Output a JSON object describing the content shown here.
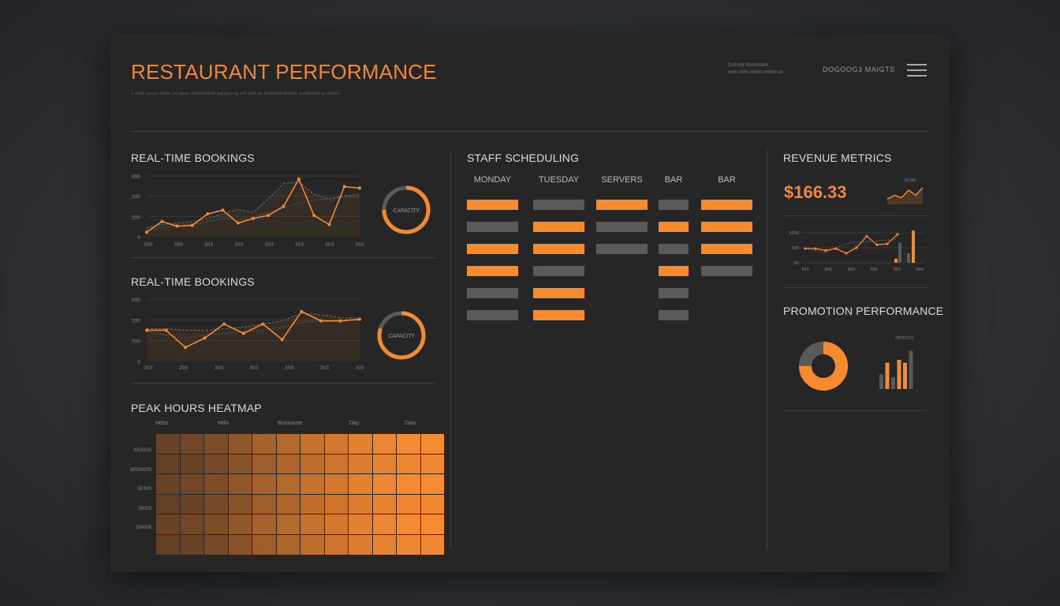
{
  "header": {
    "title": "RESTAURANT PERFORMANCE",
    "subtitle": "Lorem ipsum dolor sit amet consectetur adipiscing elit sed do eiusmod tempor incididunt ut labore",
    "small_info_1": "Dstrsmt lrtsnsbslon",
    "small_info_2": "onm omrs mbrtn mbhm sh",
    "right_label": "DOGOOG3 MAIGTS"
  },
  "bookings_1": {
    "title": "REAL-TIME BOOKINGS",
    "donut_label": "CAPACITY",
    "capacity_fraction": 0.75
  },
  "bookings_2": {
    "title": "REAL-TIME BOOKINGS",
    "donut_label": "CAPACITY",
    "capacity_fraction": 0.8
  },
  "chart_data": [
    {
      "type": "line",
      "name": "bookings_1",
      "y_ticks": [
        "0",
        "300",
        "300",
        "3000"
      ],
      "x_ticks": [
        "300",
        "300",
        "303",
        "303",
        "303",
        "303",
        "303",
        "303"
      ],
      "ylim": [
        0,
        4
      ],
      "series": [
        {
          "values": [
            0.3,
            1.0,
            0.7,
            0.75,
            1.5,
            1.75,
            0.9,
            1.2,
            1.4,
            2.0,
            3.8,
            1.4,
            0.8,
            3.3,
            3.2
          ]
        },
        {
          "values": [
            0.6,
            0.8,
            0.9,
            1.0,
            1.2,
            1.5,
            1.8,
            1.6,
            2.5,
            3.5,
            3.6,
            2.8,
            2.5,
            2.7,
            2.8
          ]
        },
        {
          "values": [
            0.4,
            0.6,
            0.7,
            0.8,
            1.0,
            1.2,
            1.1,
            1.3,
            1.6,
            1.9,
            2.2,
            2.4,
            2.5,
            2.6,
            2.6
          ]
        }
      ]
    },
    {
      "type": "line",
      "name": "bookings_2",
      "y_ticks": [
        "0",
        "300",
        "300",
        "3000"
      ],
      "x_ticks": [
        "303",
        "200",
        "300",
        "303",
        "300",
        "303",
        "303"
      ],
      "ylim": [
        0,
        4
      ],
      "series": [
        {
          "values": [
            2.0,
            2.0,
            0.9,
            1.5,
            2.4,
            1.8,
            2.4,
            1.4,
            3.2,
            2.6,
            2.6,
            2.7
          ]
        },
        {
          "values": [
            2.1,
            2.1,
            2.0,
            2.0,
            2.1,
            2.2,
            2.4,
            2.6,
            3.1,
            3.0,
            2.8,
            2.8
          ]
        },
        {
          "values": [
            1.9,
            1.7,
            1.5,
            1.7,
            1.8,
            1.9,
            2.0,
            2.2,
            2.5,
            2.6,
            2.6,
            2.7
          ]
        }
      ]
    },
    {
      "type": "line",
      "name": "revenue_mini",
      "values": [
        0.3,
        0.6,
        0.4,
        1.0,
        0.6,
        1.2
      ]
    },
    {
      "type": "line",
      "name": "revenue_detail",
      "y_ticks": [
        "50",
        "300",
        "3000"
      ],
      "x_ticks": [
        "300",
        "300",
        "300",
        "300",
        "300",
        "300"
      ],
      "series": [
        {
          "values": [
            1.5,
            1.5,
            1.3,
            1.5,
            1.0,
            1.6,
            2.8,
            1.9,
            2.0,
            3.0
          ]
        },
        {
          "values": [
            1.5,
            1.3,
            1.1,
            1.6,
            2.0,
            2.2,
            2.2,
            2.3,
            2.4,
            2.5
          ]
        }
      ],
      "bars": [
        0.3,
        1.5,
        0.7,
        2.4
      ]
    },
    {
      "type": "heatmap",
      "name": "peak_hours",
      "title": "PEAK HOURS HEATMAP",
      "columns": [
        "Hdss",
        "Hdis",
        "Bnonuuse",
        "Day",
        "Dais"
      ],
      "rows": [
        "30U0OS",
        "3000000S",
        "3030S",
        "33003",
        "330008"
      ],
      "intensity_cols": [
        0.05,
        0.1,
        0.18,
        0.3,
        0.45,
        0.55,
        0.65,
        0.75,
        0.85,
        0.92,
        0.97,
        1.0
      ]
    },
    {
      "type": "pie",
      "name": "promotion_donut",
      "slices": [
        0.75,
        0.25
      ]
    },
    {
      "type": "bar",
      "name": "promotion_bars",
      "label": "SBVDUS9",
      "values": [
        0.5,
        0.9,
        0.4,
        1.0,
        0.9,
        1.3
      ]
    }
  ],
  "staff": {
    "title": "STAFF SCHEDULING",
    "columns": [
      {
        "label": "MONDAY",
        "bars": [
          "o",
          "g",
          "o",
          "o",
          "g",
          "g"
        ]
      },
      {
        "label": "TUESDAY",
        "bars": [
          "g",
          "o",
          "o",
          "g",
          "o",
          "o"
        ]
      },
      {
        "label": "SERVERS",
        "bars": [
          "o",
          "g",
          "g"
        ]
      },
      {
        "label": "BAR",
        "bars": [
          "g",
          "o",
          "g",
          "o",
          "g",
          "g"
        ]
      },
      {
        "label": "BAR",
        "bars": [
          "o",
          "o",
          "o",
          "g"
        ]
      }
    ]
  },
  "revenue": {
    "title": "REVENUE METRICS",
    "mini_label": "3SU80",
    "price": "$166.33"
  },
  "promotion": {
    "title": "PROMOTION PERFORMANCE"
  },
  "colors": {
    "accent": "#f58a2f",
    "grey_bar": "#5a5a5a",
    "panel": "#262626"
  }
}
